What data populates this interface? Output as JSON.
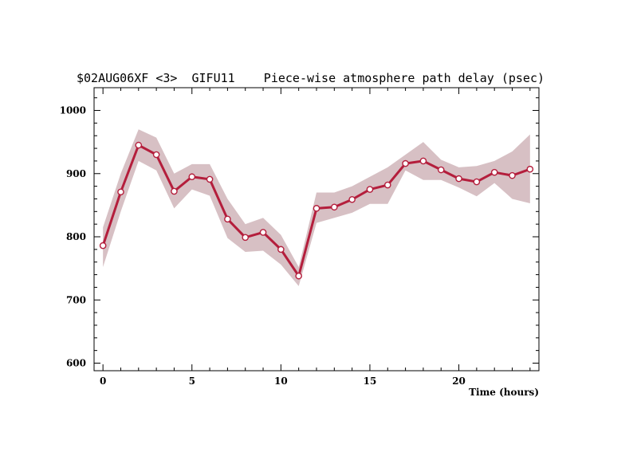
{
  "chart_data": {
    "type": "line",
    "title": "$02AUG06XF <3>  GIFU11    Piece-wise atmosphere path delay (psec)",
    "xlabel": "Time (hours)",
    "ylabel": "",
    "xlim": [
      -0.5,
      24.5
    ],
    "ylim": [
      588,
      1036
    ],
    "x_ticks": [
      0,
      5,
      10,
      15,
      20
    ],
    "y_ticks": [
      600,
      700,
      800,
      900,
      1000
    ],
    "x_tick_labels": [
      "0",
      "5",
      "10",
      "15",
      "20"
    ],
    "y_tick_labels": [
      "600",
      "700",
      "800",
      "900",
      "1000"
    ],
    "grid": false,
    "legend": "none",
    "series": [
      {
        "x": [
          0,
          1,
          2,
          3,
          4,
          5,
          6,
          7,
          8,
          9,
          10,
          11,
          12,
          13,
          14,
          15,
          16,
          17,
          18,
          19,
          20,
          21,
          22,
          23,
          24
        ],
        "values": [
          786,
          871,
          945,
          930,
          872,
          895,
          891,
          828,
          799,
          807,
          780,
          738,
          845,
          847,
          859,
          875,
          882,
          916,
          920,
          906,
          892,
          887,
          902,
          897,
          907
        ],
        "upper": [
          815,
          900,
          970,
          957,
          900,
          915,
          915,
          860,
          820,
          830,
          803,
          752,
          870,
          870,
          880,
          895,
          910,
          930,
          950,
          922,
          910,
          912,
          920,
          935,
          962
        ],
        "lower": [
          752,
          840,
          920,
          905,
          845,
          875,
          865,
          798,
          776,
          778,
          756,
          722,
          822,
          830,
          838,
          852,
          852,
          905,
          890,
          890,
          878,
          864,
          885,
          860,
          853
        ],
        "line_color": "#b41e3c",
        "band_color": "#d7c0c4",
        "marker_fill": "#ffffff"
      }
    ]
  }
}
